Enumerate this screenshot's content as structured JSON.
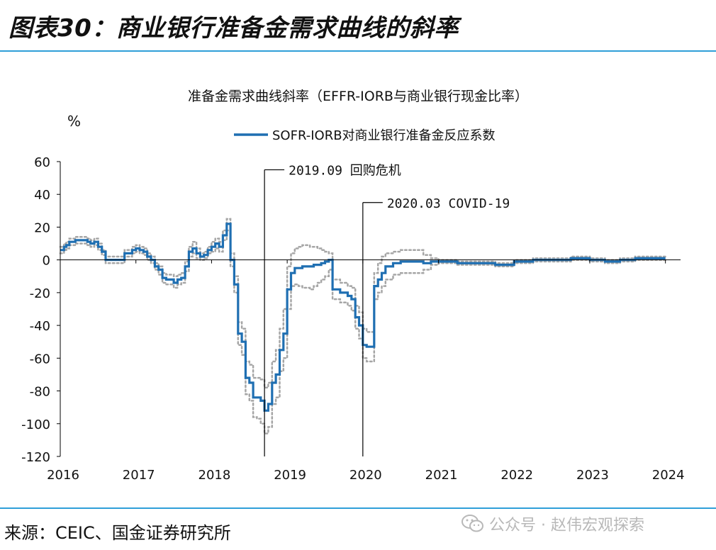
{
  "figure_title": "图表30：商业银行准备金需求曲线的斜率",
  "source": "来源：CEIC、国金证券研究所",
  "watermark": {
    "icon": "wechat-icon",
    "text": "公众号 · 赵伟宏观探索"
  },
  "colors": {
    "accent_rule": "#2f9fd8",
    "series_main": "#1f6fb2",
    "series_band": "#a6a6a6",
    "axis": "#000000"
  },
  "chart_data": {
    "type": "line",
    "title": "准备金需求曲线斜率（EFFR-IORB与商业银行现金比率）",
    "ylabel": "%",
    "ylim": [
      -120,
      60
    ],
    "yticks": [
      60,
      40,
      20,
      0,
      -20,
      -40,
      -60,
      -80,
      -100,
      -120
    ],
    "xlim": [
      2016,
      2024.2
    ],
    "xticks": [
      "2016",
      "2017",
      "2018",
      "2019",
      "2020",
      "2021",
      "2022",
      "2023",
      "2024"
    ],
    "grid": false,
    "legend_position": "top-center",
    "series": [
      {
        "name": "SOFR-IORB对商业银行准备金反应系数",
        "style": "solid",
        "x": [
          2016.0,
          2016.05,
          2016.08,
          2016.12,
          2016.16,
          2016.2,
          2016.24,
          2016.28,
          2016.32,
          2016.36,
          2016.4,
          2016.45,
          2016.5,
          2016.55,
          2016.6,
          2016.65,
          2016.7,
          2016.75,
          2016.8,
          2016.85,
          2016.9,
          2016.95,
          2017.0,
          2017.05,
          2017.1,
          2017.15,
          2017.2,
          2017.25,
          2017.3,
          2017.35,
          2017.4,
          2017.45,
          2017.5,
          2017.55,
          2017.6,
          2017.65,
          2017.7,
          2017.75,
          2017.8,
          2017.85,
          2017.9,
          2017.95,
          2018.0,
          2018.05,
          2018.1,
          2018.15,
          2018.2,
          2018.25,
          2018.3,
          2018.35,
          2018.4,
          2018.45,
          2018.5,
          2018.55,
          2018.6,
          2018.65,
          2018.7,
          2018.75,
          2018.8,
          2018.85,
          2018.9,
          2018.95,
          2019.0,
          2019.05,
          2019.1,
          2019.15,
          2019.2,
          2019.25,
          2019.3,
          2019.35,
          2019.4,
          2019.45,
          2019.5,
          2019.55,
          2019.6,
          2019.65,
          2019.7,
          2019.75,
          2019.8,
          2019.85,
          2019.9,
          2019.95,
          2020.0,
          2020.05,
          2020.1,
          2020.15,
          2020.2,
          2020.25,
          2020.3,
          2020.4,
          2020.5,
          2020.6,
          2020.7,
          2020.8,
          2020.9,
          2021.0,
          2021.25,
          2021.5,
          2021.75,
          2022.0,
          2022.25,
          2022.5,
          2022.75,
          2023.0,
          2023.2,
          2023.4,
          2023.6,
          2023.8,
          2024.0
        ],
        "y": [
          6,
          8,
          9,
          11,
          11,
          12,
          12,
          12,
          12,
          11,
          10,
          11,
          8,
          5,
          0,
          0,
          0,
          0,
          0,
          4,
          4,
          6,
          7,
          6,
          5,
          2,
          0,
          -4,
          -6,
          -11,
          -12,
          -12,
          -14,
          -12,
          -11,
          -4,
          5,
          7,
          4,
          2,
          3,
          6,
          8,
          10,
          8,
          15,
          22,
          0,
          -15,
          -45,
          -50,
          -72,
          -75,
          -84,
          -84,
          -86,
          -92,
          -88,
          -75,
          -70,
          -55,
          -45,
          -18,
          -8,
          -5,
          -5,
          -4,
          -4,
          -4,
          -3,
          -3,
          -2,
          -1,
          0,
          -18,
          -18,
          -20,
          -20,
          -22,
          -24,
          -35,
          -40,
          -52,
          -53,
          -53,
          -16,
          -12,
          -8,
          -4,
          -2,
          -1,
          -1,
          -1,
          -2,
          -1,
          -1,
          -2,
          -2,
          -3,
          -1,
          0,
          0,
          1,
          0,
          -1,
          0,
          1,
          1,
          1
        ],
        "y_upper": [
          8,
          10,
          11,
          13,
          13,
          14,
          14,
          14,
          14,
          13,
          12,
          13,
          10,
          6,
          2,
          2,
          2,
          2,
          2,
          6,
          6,
          8,
          9,
          8,
          7,
          4,
          2,
          -2,
          -4,
          -8,
          -9,
          -9,
          -10,
          -9,
          -8,
          -1,
          8,
          11,
          7,
          4,
          5,
          8,
          11,
          13,
          11,
          18,
          25,
          4,
          -10,
          -38,
          -42,
          -62,
          -64,
          -72,
          -72,
          -73,
          -78,
          -75,
          -62,
          -55,
          -42,
          -30,
          -4,
          4,
          7,
          8,
          9,
          9,
          8,
          8,
          7,
          6,
          5,
          4,
          -12,
          -12,
          -14,
          -14,
          -16,
          -17,
          -28,
          -32,
          -42,
          -44,
          -44,
          -8,
          -2,
          2,
          4,
          5,
          6,
          6,
          6,
          3,
          1,
          0,
          -1,
          -1,
          -2,
          0,
          1,
          1,
          2,
          1,
          0,
          1,
          2,
          2,
          2
        ],
        "y_lower": [
          4,
          6,
          7,
          9,
          9,
          10,
          10,
          10,
          10,
          9,
          8,
          9,
          6,
          3,
          -2,
          -2,
          -2,
          -2,
          -2,
          2,
          2,
          4,
          5,
          4,
          3,
          0,
          -2,
          -6,
          -9,
          -14,
          -15,
          -15,
          -17,
          -15,
          -14,
          -7,
          2,
          4,
          1,
          0,
          1,
          4,
          5,
          7,
          5,
          12,
          18,
          -4,
          -20,
          -52,
          -58,
          -82,
          -86,
          -96,
          -97,
          -100,
          -106,
          -102,
          -88,
          -84,
          -68,
          -60,
          -30,
          -16,
          -15,
          -16,
          -17,
          -17,
          -18,
          -16,
          -14,
          -12,
          -10,
          -6,
          -24,
          -24,
          -26,
          -26,
          -28,
          -31,
          -42,
          -48,
          -60,
          -62,
          -62,
          -24,
          -20,
          -16,
          -12,
          -9,
          -8,
          -8,
          -8,
          -6,
          -3,
          -2,
          -3,
          -3,
          -4,
          -2,
          -1,
          -1,
          0,
          -1,
          -2,
          -1,
          0,
          0,
          0
        ]
      }
    ],
    "annotations": [
      {
        "x": 2018.7,
        "label": "2019.09 回购危机",
        "label_y": 55
      },
      {
        "x": 2020.0,
        "label": "2020.03 COVID-19",
        "label_y": 35
      }
    ]
  }
}
